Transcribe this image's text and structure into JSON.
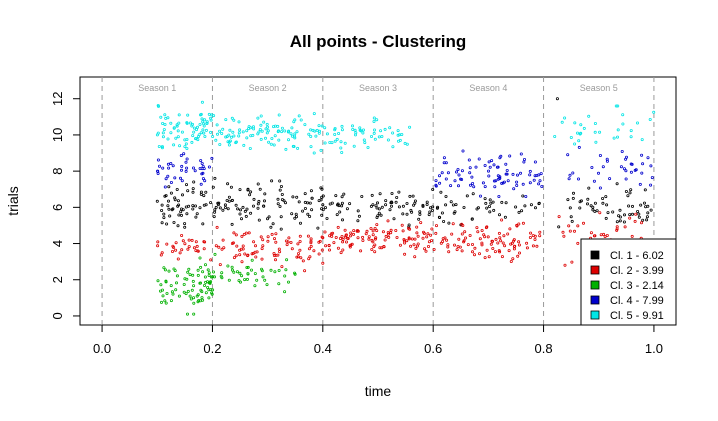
{
  "chart_data": {
    "type": "scatter",
    "title": "All points - Clustering",
    "xlabel": "time",
    "ylabel": "trials",
    "xlim": [
      -0.04,
      1.04
    ],
    "ylim": [
      -0.5,
      13.2
    ],
    "x_ticks": [
      "0.0",
      "0.2",
      "0.4",
      "0.6",
      "0.8",
      "1.0"
    ],
    "y_ticks": [
      "0",
      "2",
      "4",
      "6",
      "8",
      "10",
      "12"
    ],
    "season_boundaries": [
      0.0,
      0.2,
      0.4,
      0.6,
      0.8,
      1.0
    ],
    "season_labels": [
      "Season 1",
      "Season 2",
      "Season 3",
      "Season 4",
      "Season 5"
    ],
    "grid": false,
    "legend_position": "bottom-right",
    "legend": [
      {
        "label": "Cl. 1 -  6.02",
        "color": "#000000"
      },
      {
        "label": "Cl. 2 -  3.99",
        "color": "#dd0000"
      },
      {
        "label": "Cl. 3 -  2.14",
        "color": "#00b000"
      },
      {
        "label": "Cl. 4 -  7.99",
        "color": "#0000cc"
      },
      {
        "label": "Cl. 5 -  9.91",
        "color": "#00e5e5"
      }
    ],
    "series": [
      {
        "color": "#000000",
        "regions": [
          {
            "x": [
              0.1,
              0.2
            ],
            "y": [
              4.8,
              7.4
            ],
            "count": 55
          },
          {
            "x": [
              0.2,
              0.4
            ],
            "y": [
              4.8,
              7.6
            ],
            "count": 95
          },
          {
            "x": [
              0.4,
              0.6
            ],
            "y": [
              4.9,
              7.4
            ],
            "count": 75
          },
          {
            "x": [
              0.6,
              0.8
            ],
            "y": [
              5.0,
              7.0
            ],
            "count": 45
          },
          {
            "x": [
              0.82,
              1.0
            ],
            "y": [
              4.7,
              7.3
            ],
            "count": 55
          },
          {
            "x": [
              0.825,
              0.825
            ],
            "y": [
              12.0,
              12.0
            ],
            "count": 1
          }
        ]
      },
      {
        "color": "#dd0000",
        "regions": [
          {
            "x": [
              0.1,
              0.2
            ],
            "y": [
              3.0,
              4.6
            ],
            "count": 30
          },
          {
            "x": [
              0.2,
              0.4
            ],
            "y": [
              2.5,
              5.0
            ],
            "count": 85
          },
          {
            "x": [
              0.4,
              0.6
            ],
            "y": [
              3.2,
              5.4
            ],
            "count": 110
          },
          {
            "x": [
              0.6,
              0.8
            ],
            "y": [
              2.9,
              5.3
            ],
            "count": 95
          },
          {
            "x": [
              0.82,
              0.98
            ],
            "y": [
              2.6,
              5.8
            ],
            "count": 45
          }
        ]
      },
      {
        "color": "#00b000",
        "regions": [
          {
            "x": [
              0.1,
              0.2
            ],
            "y": [
              0.1,
              3.2
            ],
            "count": 80
          },
          {
            "x": [
              0.2,
              0.36
            ],
            "y": [
              1.0,
              3.4
            ],
            "count": 45
          }
        ]
      },
      {
        "color": "#0000cc",
        "regions": [
          {
            "x": [
              0.1,
              0.2
            ],
            "y": [
              7.0,
              9.2
            ],
            "count": 40
          },
          {
            "x": [
              0.6,
              0.8
            ],
            "y": [
              6.6,
              9.3
            ],
            "count": 85
          },
          {
            "x": [
              0.84,
              1.0
            ],
            "y": [
              6.8,
              9.4
            ],
            "count": 35
          }
        ]
      },
      {
        "color": "#00e5e5",
        "regions": [
          {
            "x": [
              0.1,
              0.2
            ],
            "y": [
              9.0,
              11.8
            ],
            "count": 75
          },
          {
            "x": [
              0.2,
              0.4
            ],
            "y": [
              9.0,
              11.2
            ],
            "count": 105
          },
          {
            "x": [
              0.4,
              0.56
            ],
            "y": [
              9.0,
              11.0
            ],
            "count": 55
          },
          {
            "x": [
              0.82,
              1.0
            ],
            "y": [
              9.0,
              11.6
            ],
            "count": 30
          }
        ]
      }
    ]
  }
}
